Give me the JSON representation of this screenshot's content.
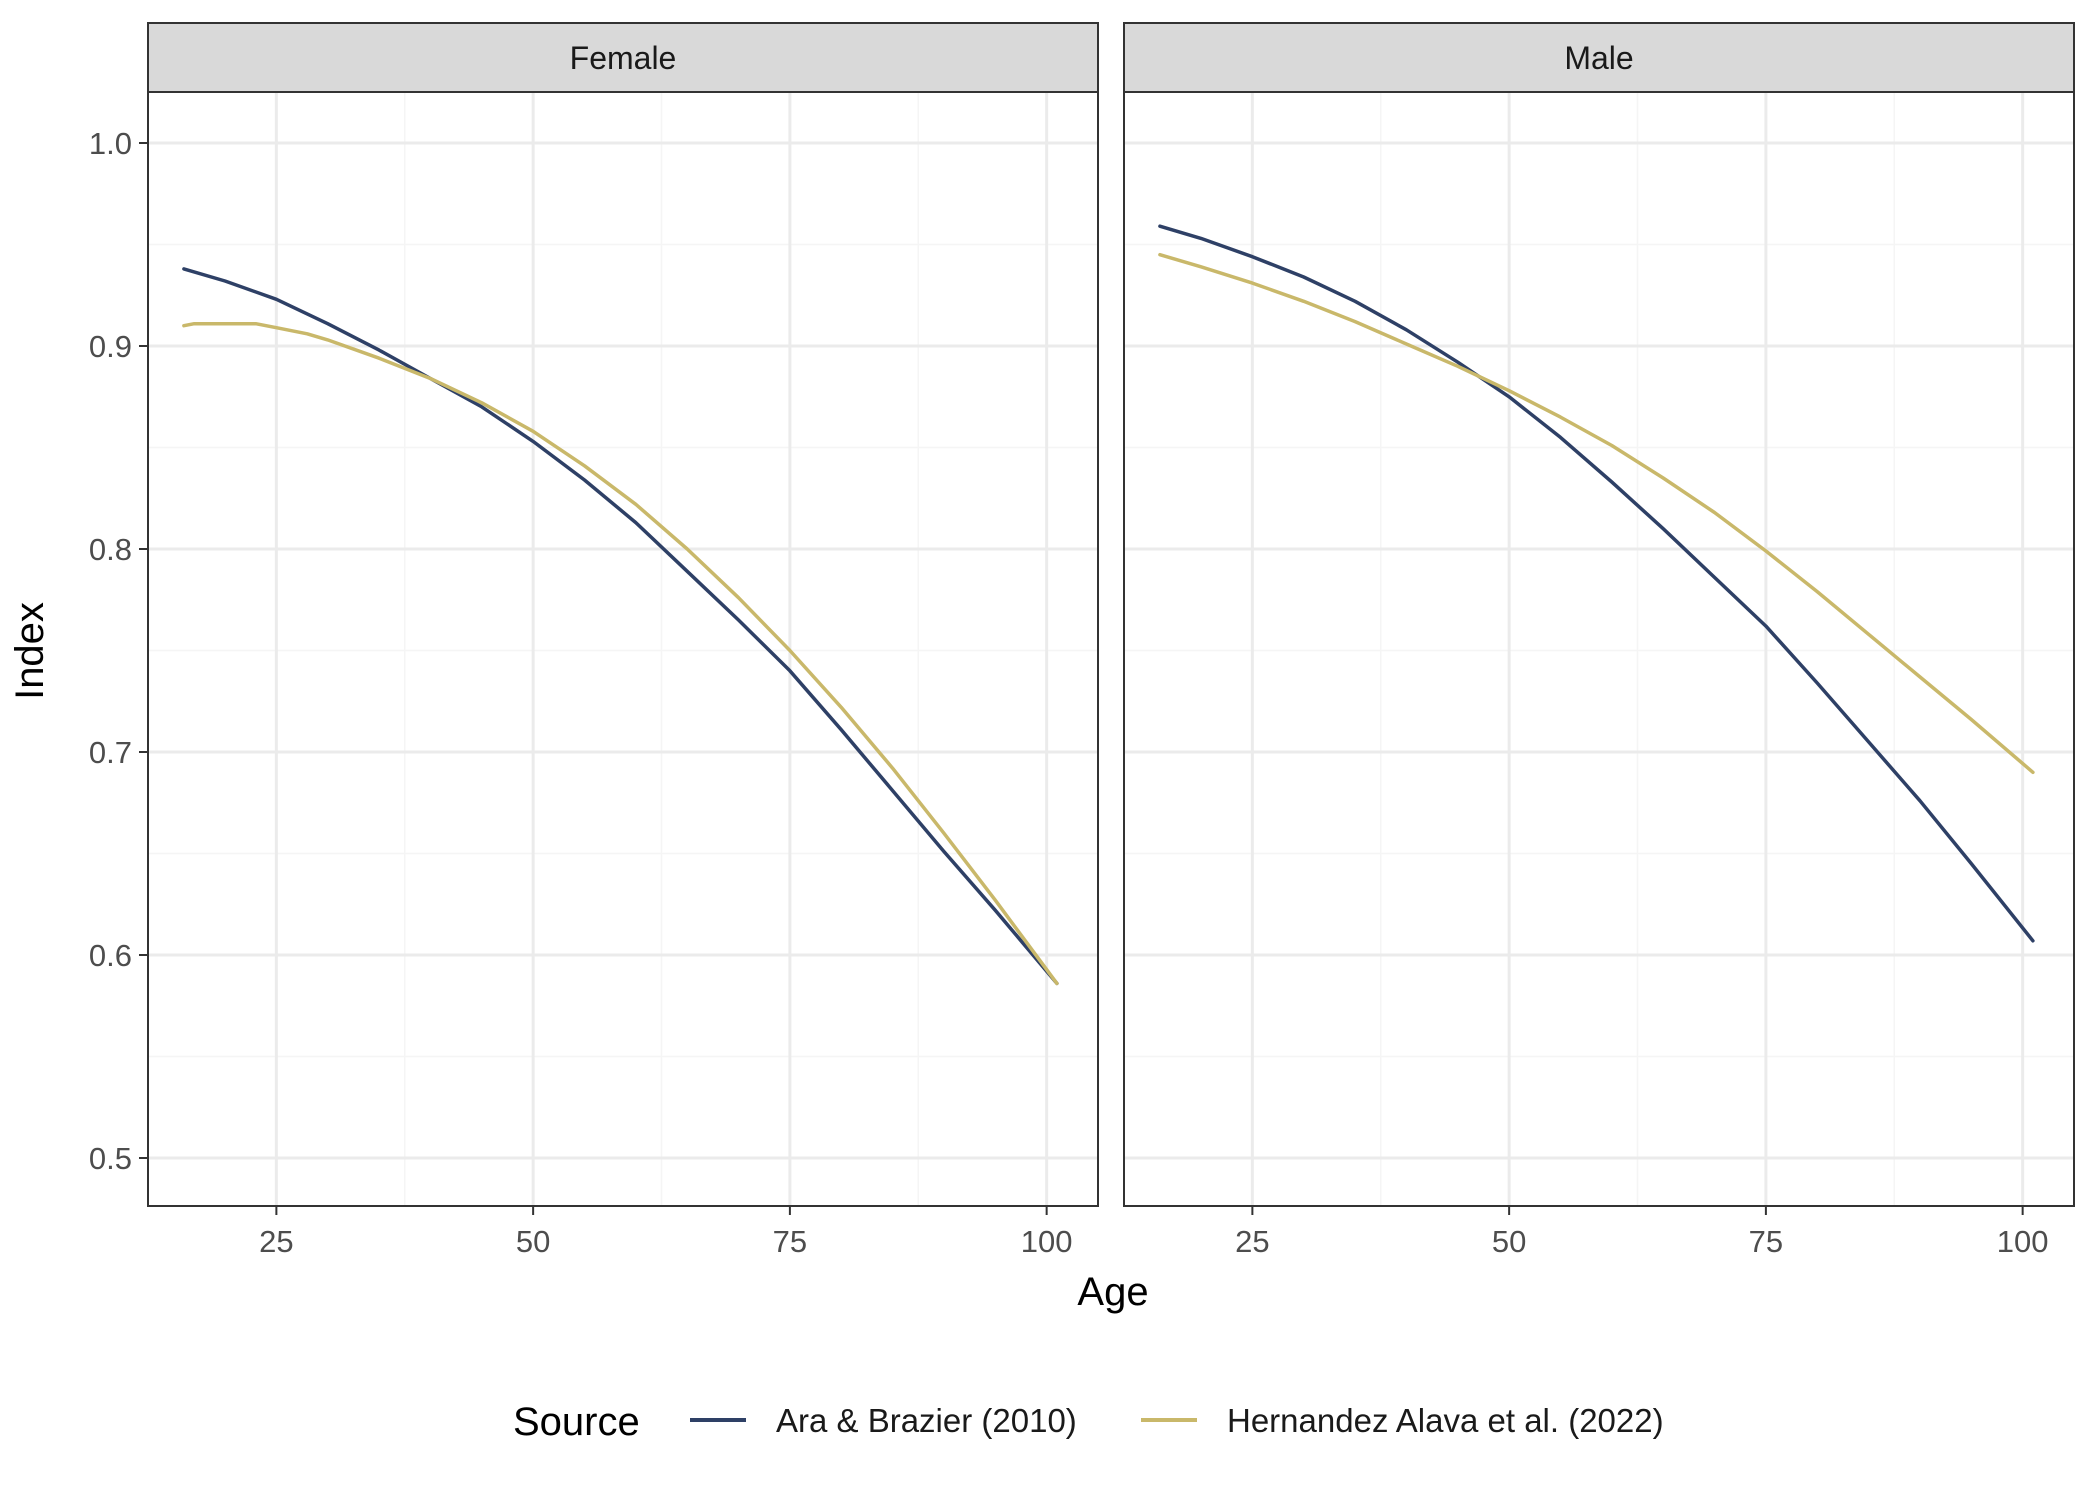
{
  "chart_data": {
    "type": "line",
    "panels": [
      {
        "label": "Female",
        "series": [
          {
            "name": "Ara & Brazier (2010)",
            "x": [
              16,
              20,
              25,
              30,
              35,
              40,
              45,
              50,
              55,
              60,
              65,
              70,
              75,
              80,
              85,
              90,
              95,
              101
            ],
            "y": [
              0.938,
              0.932,
              0.923,
              0.911,
              0.898,
              0.884,
              0.87,
              0.853,
              0.834,
              0.813,
              0.789,
              0.765,
              0.74,
              0.711,
              0.681,
              0.651,
              0.622,
              0.586
            ]
          },
          {
            "name": "Hernandez Alava et al. (2022)",
            "x": [
              16,
              17,
              20,
              23,
              25,
              28,
              30,
              35,
              40,
              45,
              50,
              55,
              60,
              65,
              70,
              75,
              80,
              85,
              90,
              95,
              101
            ],
            "y": [
              0.91,
              0.911,
              0.911,
              0.911,
              0.909,
              0.906,
              0.903,
              0.894,
              0.884,
              0.872,
              0.858,
              0.841,
              0.822,
              0.8,
              0.776,
              0.75,
              0.722,
              0.692,
              0.66,
              0.627,
              0.586
            ]
          }
        ]
      },
      {
        "label": "Male",
        "series": [
          {
            "name": "Ara & Brazier (2010)",
            "x": [
              16,
              20,
              25,
              30,
              35,
              40,
              45,
              50,
              55,
              60,
              65,
              70,
              75,
              80,
              85,
              90,
              95,
              101
            ],
            "y": [
              0.959,
              0.953,
              0.944,
              0.934,
              0.922,
              0.908,
              0.892,
              0.875,
              0.855,
              0.833,
              0.81,
              0.786,
              0.762,
              0.734,
              0.705,
              0.676,
              0.645,
              0.607
            ]
          },
          {
            "name": "Hernandez Alava et al. (2022)",
            "x": [
              16,
              20,
              25,
              30,
              35,
              40,
              45,
              50,
              55,
              60,
              65,
              70,
              75,
              80,
              85,
              90,
              95,
              101
            ],
            "y": [
              0.945,
              0.939,
              0.931,
              0.922,
              0.912,
              0.901,
              0.89,
              0.878,
              0.865,
              0.851,
              0.835,
              0.818,
              0.799,
              0.779,
              0.758,
              0.737,
              0.716,
              0.69
            ]
          }
        ]
      }
    ],
    "xlabel": "Age",
    "ylabel": "Index",
    "xlim": [
      12.5,
      105
    ],
    "ylim": [
      0.475,
      1.025
    ],
    "xticks": [
      25,
      50,
      75,
      100
    ],
    "yticks": [
      0.5,
      0.6,
      0.7,
      0.8,
      0.9,
      1.0
    ],
    "ytick_labels": [
      "0.5",
      "0.6",
      "0.7",
      "0.8",
      "0.9",
      "1.0"
    ],
    "grid": true,
    "legend": {
      "title": "Source",
      "position": "bottom",
      "entries": [
        "Ara & Brazier (2010)",
        "Hernandez Alava et al. (2022)"
      ]
    },
    "colors": {
      "Ara & Brazier (2010)": "#2e4066",
      "Hernandez Alava et al. (2022)": "#c9b86a"
    },
    "strip_background": "#d9d9d9",
    "grid_color": "#ebebeb",
    "panel_border": "#333333"
  }
}
